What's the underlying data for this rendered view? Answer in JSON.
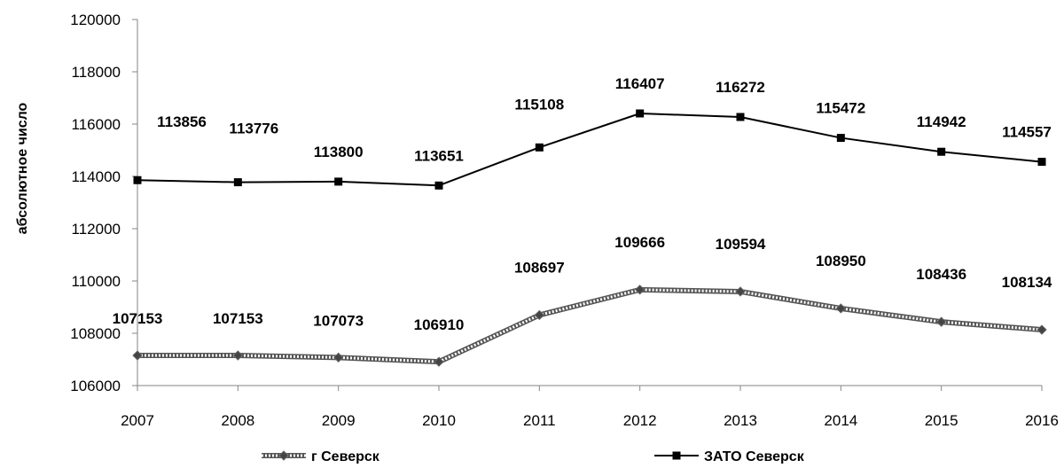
{
  "chart_data": {
    "type": "line",
    "title": "",
    "xlabel": "",
    "ylabel": "абсолютное число",
    "x": [
      "2007",
      "2008",
      "2009",
      "2010",
      "2011",
      "2012",
      "2013",
      "2014",
      "2015",
      "2016"
    ],
    "ylim": [
      106000,
      120000
    ],
    "yticks": [
      "106000",
      "108000",
      "110000",
      "112000",
      "114000",
      "116000",
      "118000",
      "120000"
    ],
    "grid": false,
    "legend_position": "bottom",
    "series": [
      {
        "name": "г Северск",
        "values": [
          107153,
          107153,
          107073,
          106910,
          108697,
          109666,
          109594,
          108950,
          108436,
          108134
        ],
        "labels": [
          "107153",
          "107153",
          "107073",
          "106910",
          "108697",
          "109666",
          "109594",
          "108950",
          "108436",
          "108134"
        ],
        "marker": "diamond",
        "color": "#555555"
      },
      {
        "name": "ЗАТО Северск",
        "values": [
          113856,
          113776,
          113800,
          113651,
          115108,
          116407,
          116272,
          115472,
          114942,
          114557
        ],
        "labels": [
          "113856",
          "113776",
          "113800",
          "113651",
          "115108",
          "116407",
          "116272",
          "115472",
          "114942",
          "114557"
        ],
        "marker": "square",
        "color": "#000000"
      }
    ]
  }
}
